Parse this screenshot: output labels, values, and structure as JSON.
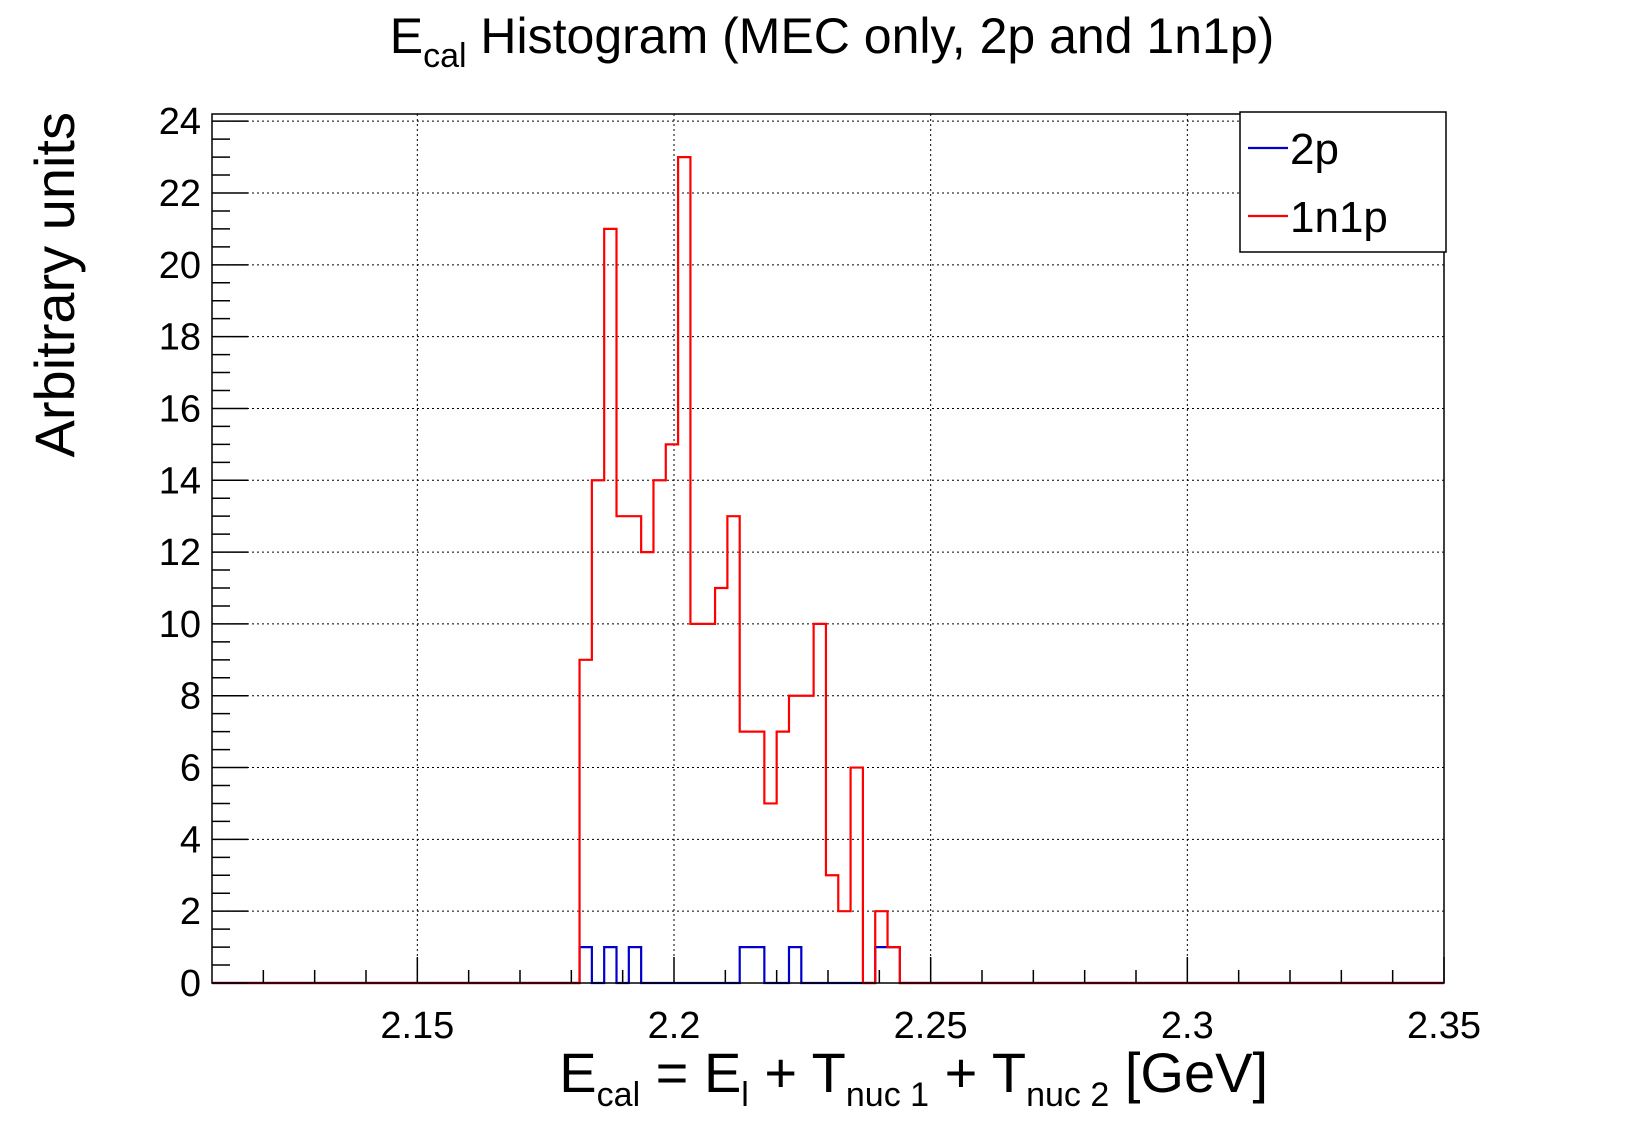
{
  "chart_data": {
    "type": "bar",
    "histogram": true,
    "title": {
      "parts": [
        {
          "text": "E",
          "sub": false
        },
        {
          "text": "cal",
          "sub": true
        },
        {
          "text": " Histogram (MEC only, 2p and 1n1p)",
          "sub": false
        }
      ]
    },
    "xlabel": {
      "parts": [
        {
          "text": "E",
          "sub": false
        },
        {
          "text": "cal",
          "sub": true
        },
        {
          "text": " = E",
          "sub": false
        },
        {
          "text": "l",
          "sub": true
        },
        {
          "text": " + T",
          "sub": false
        },
        {
          "text": "nuc 1",
          "sub": true
        },
        {
          "text": " + T",
          "sub": false
        },
        {
          "text": "nuc 2",
          "sub": true
        },
        {
          "text": " [GeV]",
          "sub": false
        }
      ]
    },
    "ylabel": "Arbitrary units",
    "xlim": [
      2.11,
      2.35
    ],
    "ylim": [
      0,
      24.2
    ],
    "x_ticks": [
      2.15,
      2.2,
      2.25,
      2.3,
      2.35
    ],
    "x_tick_labels": [
      "2.15",
      "2.2",
      "2.25",
      "2.3",
      "2.35"
    ],
    "y_ticks": [
      0,
      2,
      4,
      6,
      8,
      10,
      12,
      14,
      16,
      18,
      20,
      22,
      24
    ],
    "y_tick_labels": [
      "0",
      "2",
      "4",
      "6",
      "8",
      "10",
      "12",
      "14",
      "16",
      "18",
      "20",
      "22",
      "24"
    ],
    "grid": true,
    "legend_position": "top-right",
    "bin_width": 0.0024,
    "series": [
      {
        "name": "2p",
        "color": "#0000cc",
        "bin_starts": [
          2.1816,
          2.184,
          2.1864,
          2.1888,
          2.1912,
          2.1936,
          2.196,
          2.1984,
          2.2008,
          2.2032,
          2.2056,
          2.208,
          2.2104,
          2.2128,
          2.2152,
          2.2176,
          2.22,
          2.2224,
          2.2248,
          2.2272,
          2.2296,
          2.232,
          2.2344,
          2.2368,
          2.2392,
          2.2416
        ],
        "values": [
          1,
          0,
          1,
          0,
          1,
          0,
          0,
          0,
          0,
          0,
          0,
          0,
          0,
          1,
          1,
          0,
          0,
          1,
          0,
          0,
          0,
          0,
          0,
          0,
          1,
          1
        ]
      },
      {
        "name": "1n1p",
        "color": "#ff0000",
        "bin_starts": [
          2.1816,
          2.184,
          2.1864,
          2.1888,
          2.1912,
          2.1936,
          2.196,
          2.1984,
          2.2008,
          2.2032,
          2.2056,
          2.208,
          2.2104,
          2.2128,
          2.2152,
          2.2176,
          2.22,
          2.2224,
          2.2248,
          2.2272,
          2.2296,
          2.232,
          2.2344,
          2.2368,
          2.2392,
          2.2416
        ],
        "values": [
          9,
          14,
          21,
          13,
          13,
          12,
          14,
          15,
          23,
          10,
          10,
          11,
          13,
          7,
          7,
          5,
          7,
          8,
          8,
          10,
          3,
          2,
          6,
          0,
          2,
          1
        ]
      }
    ]
  }
}
